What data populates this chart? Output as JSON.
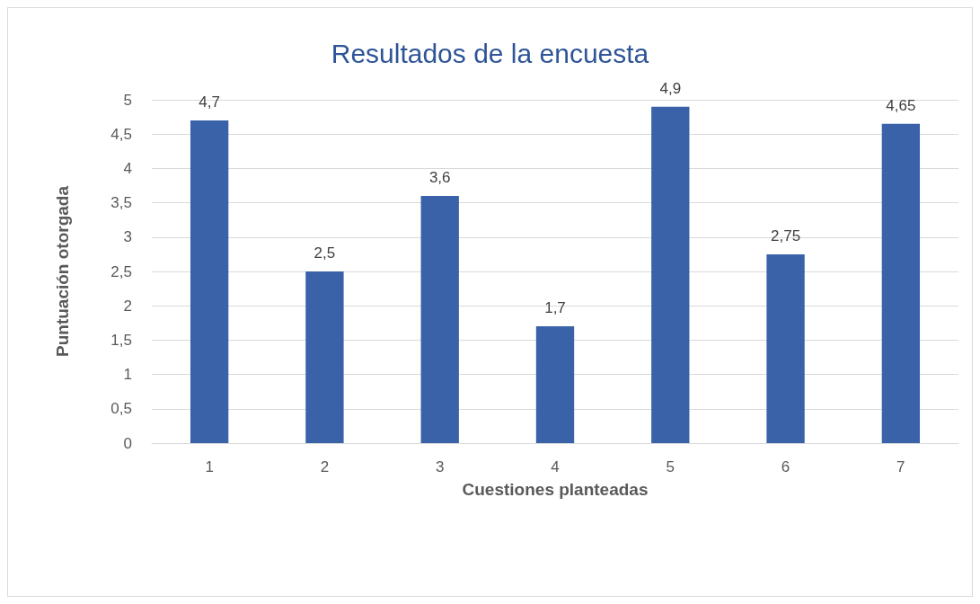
{
  "chart_data": {
    "type": "bar",
    "title": "Resultados de la encuesta",
    "xlabel": "Cuestiones planteadas",
    "ylabel": "Puntuación otorgada",
    "categories": [
      "1",
      "2",
      "3",
      "4",
      "5",
      "6",
      "7"
    ],
    "values": [
      4.7,
      2.5,
      3.6,
      1.7,
      4.9,
      2.75,
      4.65
    ],
    "value_labels": [
      "4,7",
      "2,5",
      "3,6",
      "1,7",
      "4,9",
      "2,75",
      "4,65"
    ],
    "color": "#3a62a8",
    "ylim": [
      0,
      5
    ],
    "yticks": [
      0,
      {
        "value": 0.5,
        "label": "0,5"
      },
      1,
      {
        "value": 1.5,
        "label": "1,5"
      },
      2,
      {
        "value": 2.5,
        "label": "2,5"
      },
      3,
      {
        "value": 3.5,
        "label": "3,5"
      },
      4,
      {
        "value": 4.5,
        "label": "4,5"
      },
      5
    ],
    "grid": "y"
  }
}
